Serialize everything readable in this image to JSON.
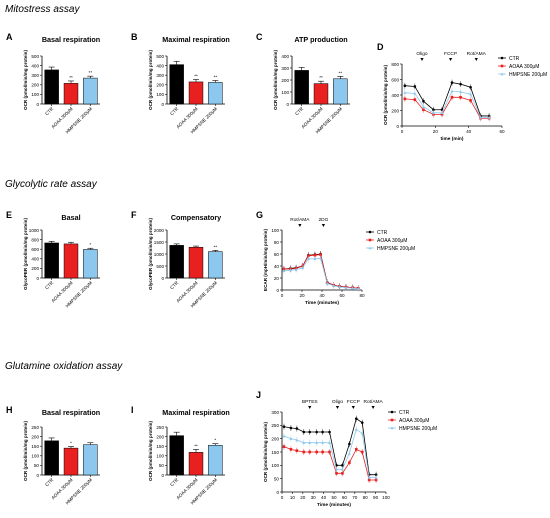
{
  "sections": [
    {
      "title": "Mitostress assay"
    },
    {
      "title": "Glycolytic rate assay"
    },
    {
      "title": "Glutamine oxidation assay"
    }
  ],
  "colors": {
    "CTR": "#000000",
    "AOAA": "#e8201f",
    "HMPSNE": "#8cc8ee"
  },
  "chart_data": [
    {
      "id": "A",
      "type": "bar",
      "title": "Basal respiration",
      "ylabel": "OCR (pmol/min/mg protein)",
      "ylim": [
        0,
        500
      ],
      "yticks": [
        "0",
        "100",
        "200",
        "300",
        "400",
        "500"
      ],
      "categories": [
        "CTR",
        "AOAA 300μM",
        "HMPSNE 200μM"
      ],
      "values": [
        355,
        215,
        270
      ],
      "errors": [
        30,
        25,
        20
      ],
      "sig": [
        "",
        "**",
        "**"
      ]
    },
    {
      "id": "B",
      "type": "bar",
      "title": "Maximal respiration",
      "ylabel": "OCR (pmol/min/mg protein)",
      "ylim": [
        0,
        500
      ],
      "yticks": [
        "0",
        "100",
        "200",
        "300",
        "400",
        "500"
      ],
      "categories": [
        "CTR",
        "AOAA 300μM",
        "HMPSNE 200μM"
      ],
      "values": [
        410,
        230,
        225
      ],
      "errors": [
        35,
        25,
        20
      ],
      "sig": [
        "",
        "**",
        "**"
      ]
    },
    {
      "id": "C",
      "type": "bar",
      "title": "ATP production",
      "ylabel": "OCR (pmol/min/mg protein)",
      "ylim": [
        0,
        400
      ],
      "yticks": [
        "0",
        "100",
        "200",
        "300",
        "400"
      ],
      "categories": [
        "CTR",
        "AOAA 300μM",
        "HMPSNE 200μM"
      ],
      "values": [
        280,
        170,
        210
      ],
      "errors": [
        25,
        20,
        20
      ],
      "sig": [
        "",
        "**",
        "**"
      ]
    },
    {
      "id": "D",
      "type": "line",
      "title": "",
      "ylabel": "OCR (pmol/min/mg protein)",
      "xlabel": "time (min)",
      "xlim": [
        0,
        70
      ],
      "ylim": [
        0,
        800
      ],
      "xticks": [
        "0",
        "20",
        "40",
        "60"
      ],
      "yticks": [
        "0",
        "200",
        "400",
        "600",
        "800"
      ],
      "x": [
        2,
        9,
        15,
        22,
        28,
        35,
        41,
        48,
        55,
        61
      ],
      "series": [
        {
          "name": "CTR",
          "values": [
            520,
            510,
            320,
            210,
            210,
            560,
            540,
            500,
            130,
            130
          ]
        },
        {
          "name": "AOAA 300μM",
          "values": [
            350,
            340,
            210,
            150,
            150,
            370,
            370,
            330,
            100,
            100
          ]
        },
        {
          "name": "HMPSNE 200μM",
          "values": [
            430,
            420,
            250,
            170,
            170,
            450,
            440,
            410,
            110,
            110
          ]
        }
      ],
      "annotations": [
        {
          "label": "Oligo",
          "x": 14
        },
        {
          "label": "FCCP",
          "x": 34
        },
        {
          "label": "Rot/AMA",
          "x": 52
        }
      ]
    },
    {
      "id": "E",
      "type": "bar",
      "title": "Basal",
      "ylabel": "GlycoPER (pmol/min/mg protein)",
      "ylim": [
        0,
        1000
      ],
      "yticks": [
        "0",
        "200",
        "400",
        "600",
        "800",
        "1000"
      ],
      "categories": [
        "CTR",
        "AOAA 300μM",
        "HMPSNE 200μM"
      ],
      "values": [
        730,
        710,
        595
      ],
      "errors": [
        35,
        35,
        25
      ],
      "sig": [
        "",
        "",
        "*"
      ]
    },
    {
      "id": "F",
      "type": "bar",
      "title": "Compensatory",
      "ylabel": "GlycoPER (pmol/min/mg protein)",
      "ylim": [
        0,
        2000
      ],
      "yticks": [
        "0",
        "500",
        "1000",
        "1500",
        "2000"
      ],
      "categories": [
        "CTR",
        "AOAA 300μM",
        "HMPSNE 200μM"
      ],
      "values": [
        1360,
        1280,
        1100
      ],
      "errors": [
        60,
        50,
        50
      ],
      "sig": [
        "",
        "",
        "**"
      ]
    },
    {
      "id": "G",
      "type": "line",
      "title": "",
      "ylabel": "ECAR (mpH/min/mg protein)",
      "xlabel": "Time (minutes)",
      "xlim": [
        0,
        85
      ],
      "ylim": [
        0,
        100
      ],
      "xticks": [
        "0",
        "20",
        "40",
        "60",
        "80"
      ],
      "yticks": [
        "0",
        "20",
        "40",
        "60",
        "80",
        "100"
      ],
      "x": [
        2,
        9,
        15,
        22,
        28,
        35,
        41,
        48,
        55,
        61,
        68,
        75,
        81
      ],
      "series": [
        {
          "name": "CTR",
          "values": [
            35,
            36,
            37,
            40,
            58,
            59,
            60,
            13,
            8,
            6,
            5,
            4,
            3
          ]
        },
        {
          "name": "AOAA 300μM",
          "values": [
            35,
            35,
            36,
            40,
            57,
            58,
            59,
            12,
            8,
            6,
            5,
            4,
            3
          ]
        },
        {
          "name": "HMPSNE 200μM",
          "values": [
            32,
            33,
            34,
            37,
            52,
            52,
            53,
            11,
            7,
            5,
            4,
            3,
            2
          ]
        }
      ],
      "annotations": [
        {
          "label": "Rot/AMA",
          "x": 19
        },
        {
          "label": "2DG",
          "x": 44
        }
      ]
    },
    {
      "id": "H",
      "type": "bar",
      "title": "Basal respiration",
      "ylabel": "OCR (pmol/min/mg protein)",
      "ylim": [
        0,
        250
      ],
      "yticks": [
        "0",
        "50",
        "100",
        "150",
        "200",
        "250"
      ],
      "categories": [
        "CTR",
        "AOAA 300μM",
        "HMPSNE 200μM"
      ],
      "values": [
        178,
        140,
        158
      ],
      "errors": [
        15,
        8,
        10
      ],
      "sig": [
        "",
        "*",
        ""
      ]
    },
    {
      "id": "I",
      "type": "bar",
      "title": "Maximal respiration",
      "ylabel": "OCR (pmol/min/mg protein)",
      "ylim": [
        0,
        250
      ],
      "yticks": [
        "0",
        "50",
        "100",
        "150",
        "200",
        "250"
      ],
      "categories": [
        "CTR",
        "AOAA 300μM",
        "HMPSNE 200μM"
      ],
      "values": [
        205,
        118,
        155
      ],
      "errors": [
        18,
        15,
        8
      ],
      "sig": [
        "",
        "**",
        "*"
      ]
    },
    {
      "id": "J",
      "type": "line",
      "title": "",
      "ylabel": "OCR (pmol/min/mg protein)",
      "xlabel": "Time (minutes)",
      "xlim": [
        0,
        105
      ],
      "ylim": [
        0,
        300
      ],
      "xticks": [
        "0",
        "10",
        "20",
        "30",
        "40",
        "50",
        "60",
        "70",
        "80",
        "90",
        "100"
      ],
      "yticks": [
        "0",
        "50",
        "100",
        "150",
        "200",
        "250",
        "300"
      ],
      "x": [
        2,
        9,
        15,
        22,
        28,
        35,
        41,
        48,
        55,
        61,
        68,
        75,
        81,
        88,
        95
      ],
      "series": [
        {
          "name": "CTR",
          "values": [
            245,
            240,
            238,
            225,
            225,
            225,
            225,
            225,
            100,
            100,
            180,
            275,
            260,
            65,
            65
          ]
        },
        {
          "name": "AOAA 300μM",
          "values": [
            170,
            160,
            155,
            150,
            150,
            150,
            150,
            150,
            70,
            70,
            110,
            160,
            150,
            45,
            45
          ]
        },
        {
          "name": "HMPSNE 200μM",
          "values": [
            210,
            200,
            195,
            185,
            185,
            185,
            185,
            185,
            85,
            85,
            145,
            235,
            220,
            55,
            55
          ]
        }
      ],
      "annotations": [
        {
          "label": "BPTES",
          "x": 28
        },
        {
          "label": "Oligo",
          "x": 56
        },
        {
          "label": "FCCP",
          "x": 72
        },
        {
          "label": "Rot/AMA",
          "x": 92
        }
      ]
    }
  ]
}
